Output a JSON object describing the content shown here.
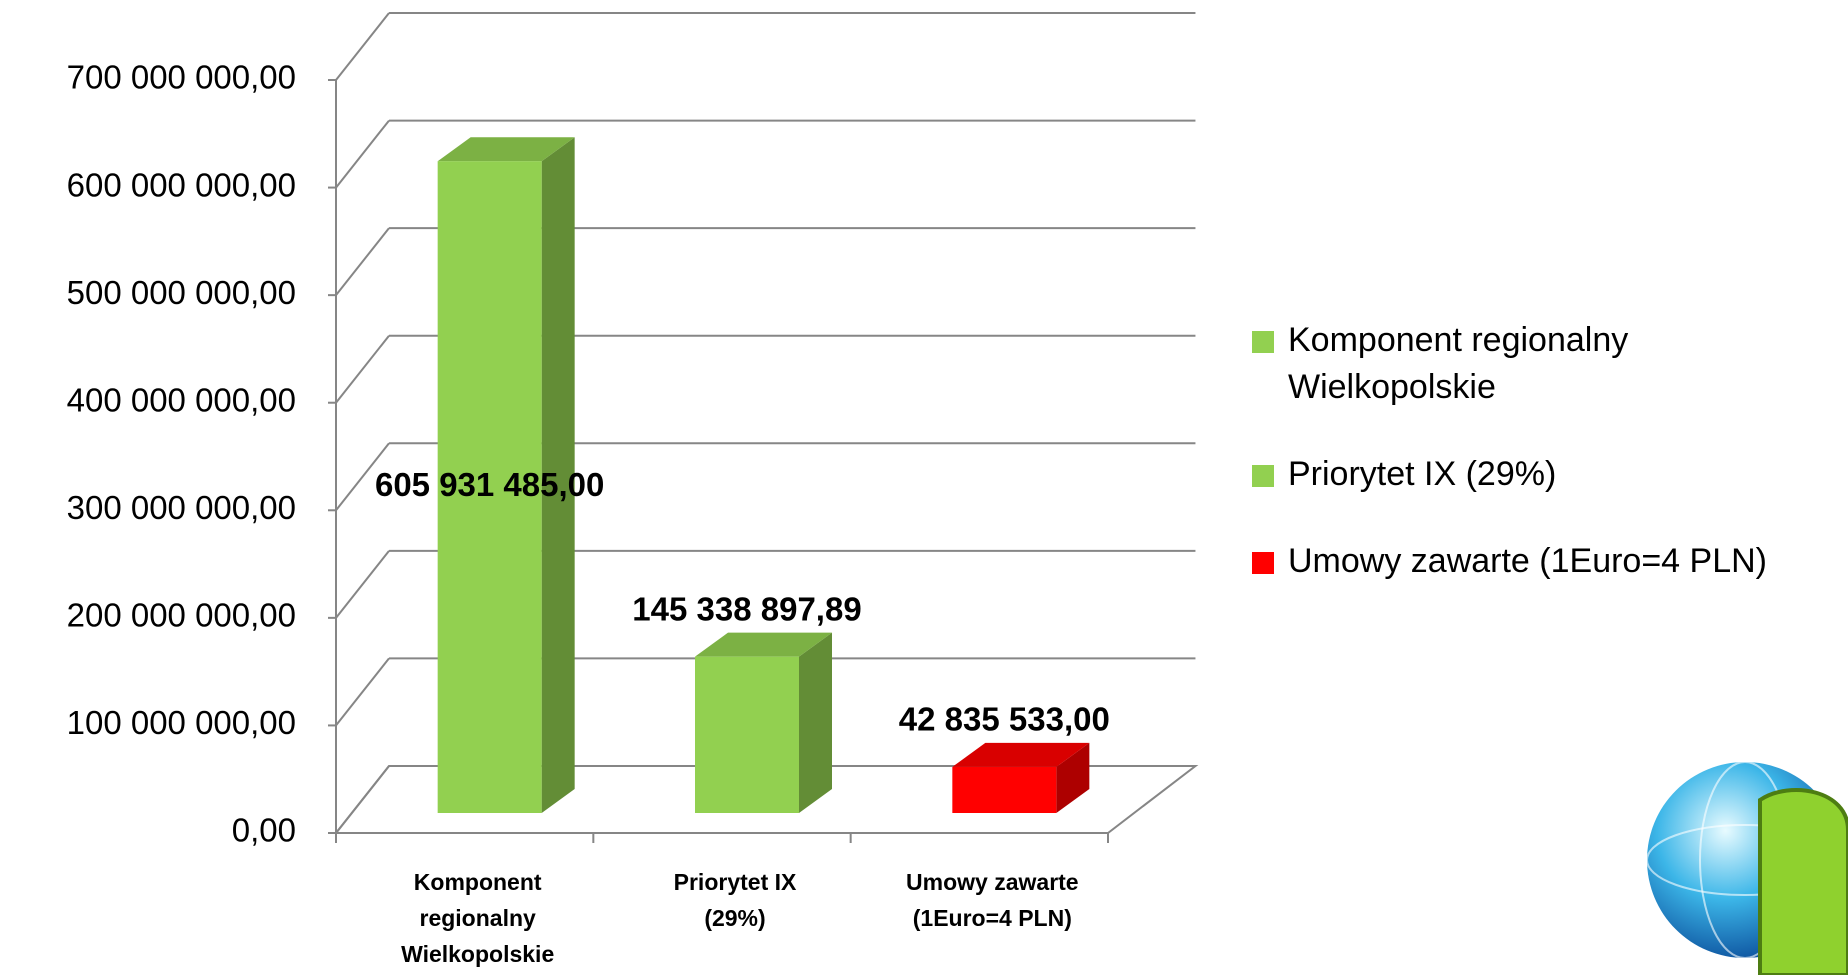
{
  "chart_data": {
    "type": "bar3d",
    "categories": [
      "Komponent regionalny Wielkopolskie",
      "Priorytet IX (29%)",
      "Umowy zawarte (1Euro=4 PLN)"
    ],
    "values": [
      605931485,
      145338897.89,
      42835533
    ],
    "value_labels": [
      "605 931 485,00",
      "145 338 897,89",
      "42 835 533,00"
    ],
    "colors": [
      "#92d050",
      "#92d050",
      "#ff0000"
    ],
    "ylim": [
      0,
      700000000
    ],
    "yticks": [
      {
        "value": 0,
        "label": "0,00"
      },
      {
        "value": 100000000,
        "label": "100 000 000,00"
      },
      {
        "value": 200000000,
        "label": "200 000 000,00"
      },
      {
        "value": 300000000,
        "label": "300 000 000,00"
      },
      {
        "value": 400000000,
        "label": "400 000 000,00"
      },
      {
        "value": 500000000,
        "label": "500 000 000,00"
      },
      {
        "value": 600000000,
        "label": "600 000 000,00"
      },
      {
        "value": 700000000,
        "label": "700 000 000,00"
      }
    ],
    "grid": true,
    "legend": "right"
  }
}
